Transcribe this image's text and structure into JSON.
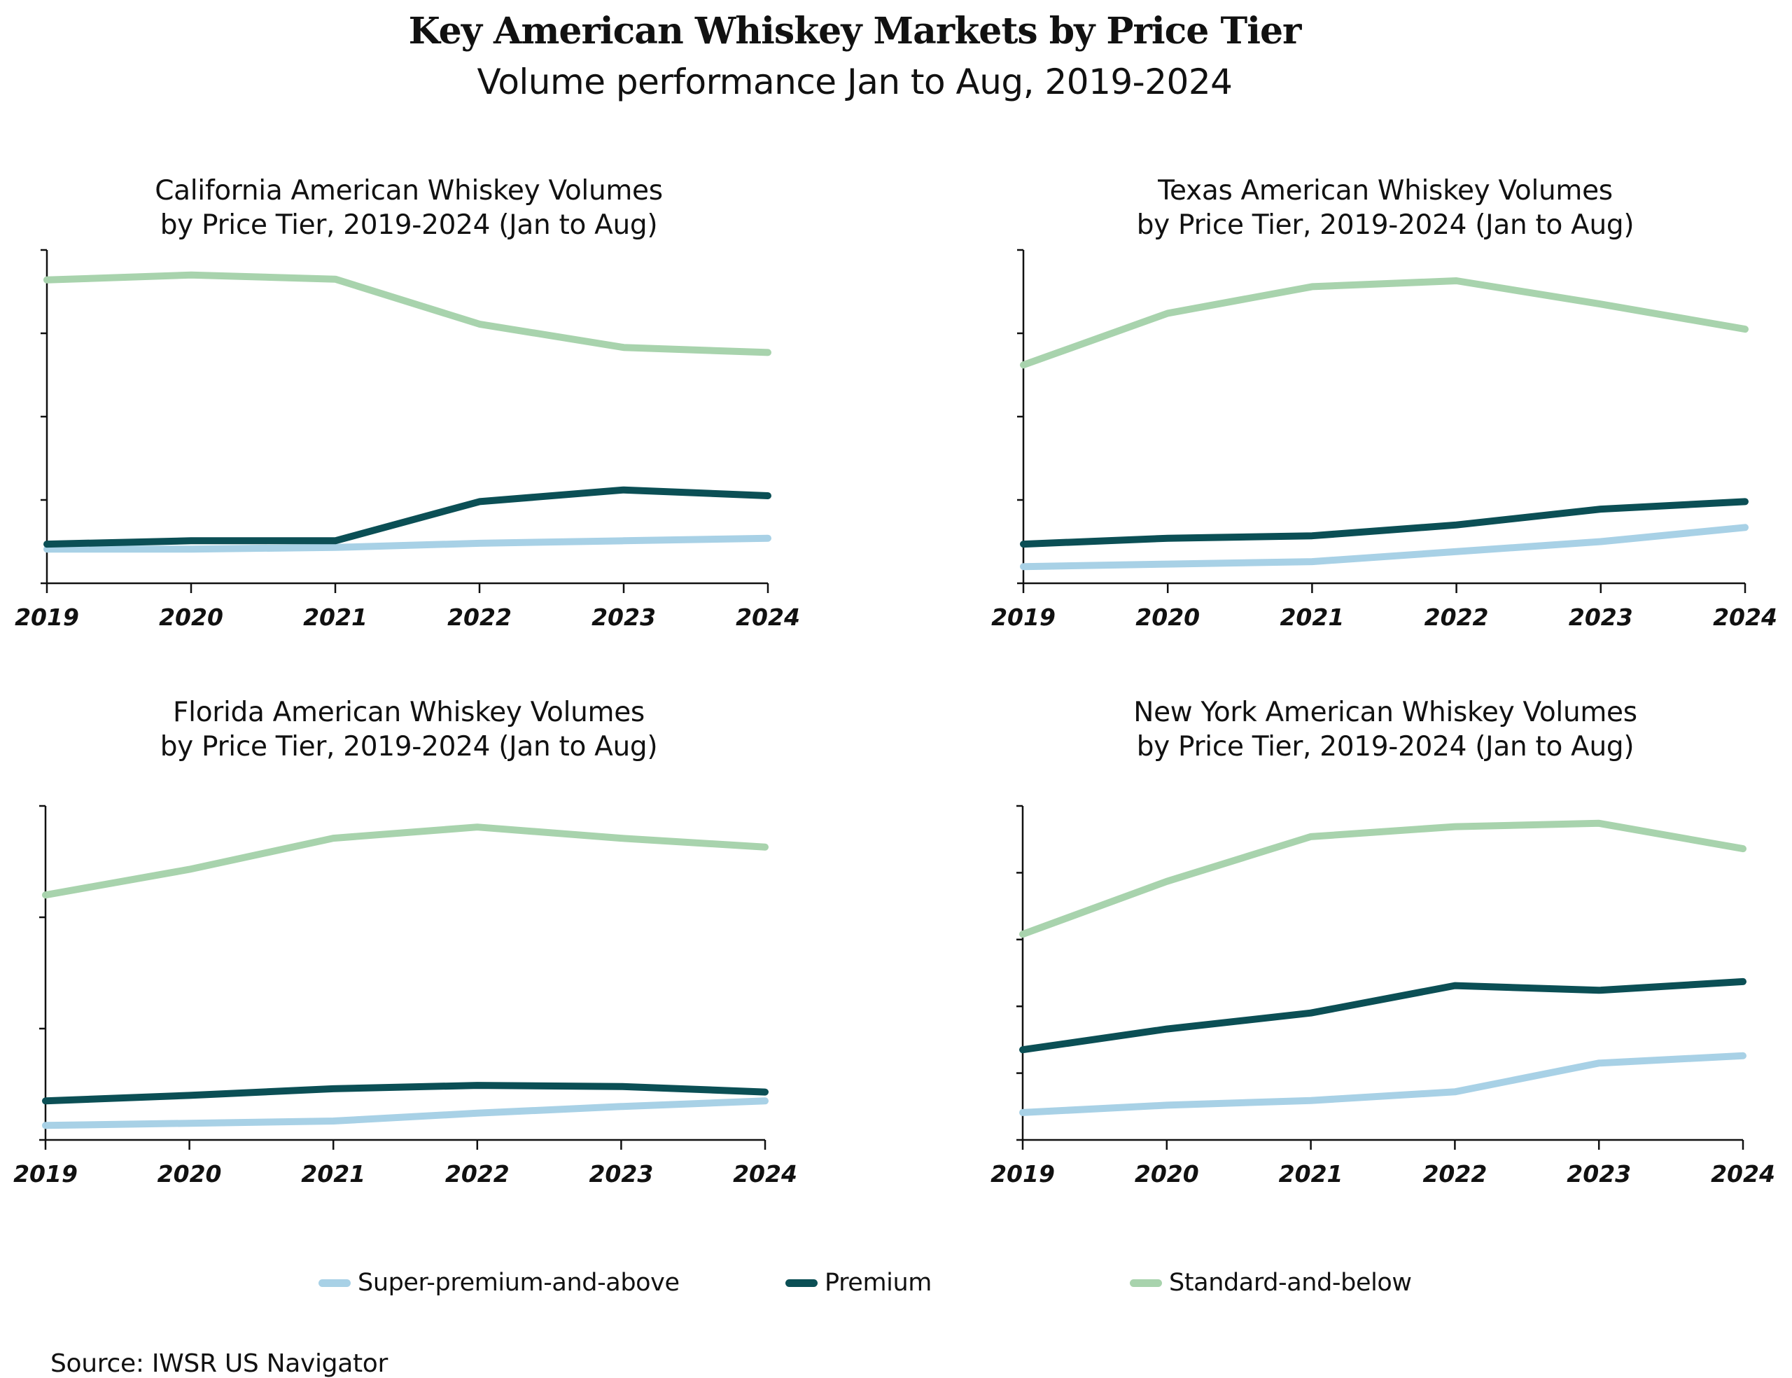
{
  "title": "Key American Whiskey Markets by Price Tier",
  "subtitle": "Volume performance Jan to Aug, 2019-2024",
  "source": "Source: IWSR US Navigator",
  "legend": [
    {
      "name": "Super-premium-and-above",
      "color": "#a8d1e6"
    },
    {
      "name": "Premium",
      "color": "#0b4f55"
    },
    {
      "name": "Standard-and-below",
      "color": "#a8d3ad"
    }
  ],
  "chart_data": [
    {
      "type": "line",
      "title_line1": "California American Whiskey Volumes",
      "title_line2": "by Price Tier, 2019-2024 (Jan to Aug)",
      "xlabel": "",
      "ylabel": "",
      "categories": [
        "2019",
        "2020",
        "2021",
        "2022",
        "2023",
        "2024"
      ],
      "ylim": [
        0,
        4
      ],
      "y_ticks": [
        0,
        1,
        2,
        3,
        4
      ],
      "y_tick_labels_shown": false,
      "grid": false,
      "series": [
        {
          "name": "Super-premium-and-above",
          "color": "#a8d1e6",
          "values": [
            0.41,
            0.41,
            0.43,
            0.48,
            0.51,
            0.54
          ]
        },
        {
          "name": "Premium",
          "color": "#0b4f55",
          "values": [
            0.47,
            0.51,
            0.51,
            0.98,
            1.12,
            1.05
          ]
        },
        {
          "name": "Standard-and-below",
          "color": "#a8d3ad",
          "values": [
            3.64,
            3.7,
            3.65,
            3.11,
            2.83,
            2.77
          ]
        }
      ]
    },
    {
      "type": "line",
      "title_line1": "Texas American Whiskey Volumes",
      "title_line2": "by Price Tier, 2019-2024 (Jan to Aug)",
      "xlabel": "",
      "ylabel": "",
      "categories": [
        "2019",
        "2020",
        "2021",
        "2022",
        "2023",
        "2024"
      ],
      "ylim": [
        0,
        4
      ],
      "y_ticks": [
        0,
        1,
        2,
        3,
        4
      ],
      "y_tick_labels_shown": false,
      "grid": false,
      "series": [
        {
          "name": "Super-premium-and-above",
          "color": "#a8d1e6",
          "values": [
            0.2,
            0.23,
            0.26,
            0.38,
            0.5,
            0.67
          ]
        },
        {
          "name": "Premium",
          "color": "#0b4f55",
          "values": [
            0.47,
            0.54,
            0.57,
            0.7,
            0.89,
            0.98
          ]
        },
        {
          "name": "Standard-and-below",
          "color": "#a8d3ad",
          "values": [
            2.62,
            3.24,
            3.56,
            3.63,
            3.35,
            3.05
          ]
        }
      ]
    },
    {
      "type": "line",
      "title_line1": "Florida American Whiskey Volumes",
      "title_line2": "by Price Tier, 2019-2024 (Jan to Aug)",
      "xlabel": "",
      "ylabel": "",
      "categories": [
        "2019",
        "2020",
        "2021",
        "2022",
        "2023",
        "2024"
      ],
      "ylim": [
        0,
        3
      ],
      "y_ticks": [
        0,
        1,
        2,
        3
      ],
      "y_tick_labels_shown": false,
      "grid": false,
      "series": [
        {
          "name": "Super-premium-and-above",
          "color": "#a8d1e6",
          "values": [
            0.13,
            0.15,
            0.17,
            0.24,
            0.3,
            0.35
          ]
        },
        {
          "name": "Premium",
          "color": "#0b4f55",
          "values": [
            0.35,
            0.4,
            0.46,
            0.49,
            0.48,
            0.43
          ]
        },
        {
          "name": "Standard-and-below",
          "color": "#a8d3ad",
          "values": [
            2.2,
            2.43,
            2.71,
            2.81,
            2.71,
            2.63
          ]
        }
      ]
    },
    {
      "type": "line",
      "title_line1": "New York American Whiskey Volumes",
      "title_line2": "by Price Tier, 2019-2024 (Jan to Aug)",
      "xlabel": "",
      "ylabel": "",
      "categories": [
        "2019",
        "2020",
        "2021",
        "2022",
        "2023",
        "2024"
      ],
      "ylim": [
        0,
        5
      ],
      "y_ticks": [
        0,
        1,
        2,
        3,
        4,
        5
      ],
      "y_tick_labels_shown": false,
      "grid": false,
      "series": [
        {
          "name": "Super-premium-and-above",
          "color": "#a8d1e6",
          "values": [
            0.41,
            0.52,
            0.59,
            0.72,
            1.15,
            1.26
          ]
        },
        {
          "name": "Premium",
          "color": "#0b4f55",
          "values": [
            1.35,
            1.66,
            1.9,
            2.31,
            2.24,
            2.37
          ]
        },
        {
          "name": "Standard-and-below",
          "color": "#a8d3ad",
          "values": [
            3.08,
            3.87,
            4.54,
            4.69,
            4.74,
            4.36
          ]
        }
      ]
    }
  ]
}
